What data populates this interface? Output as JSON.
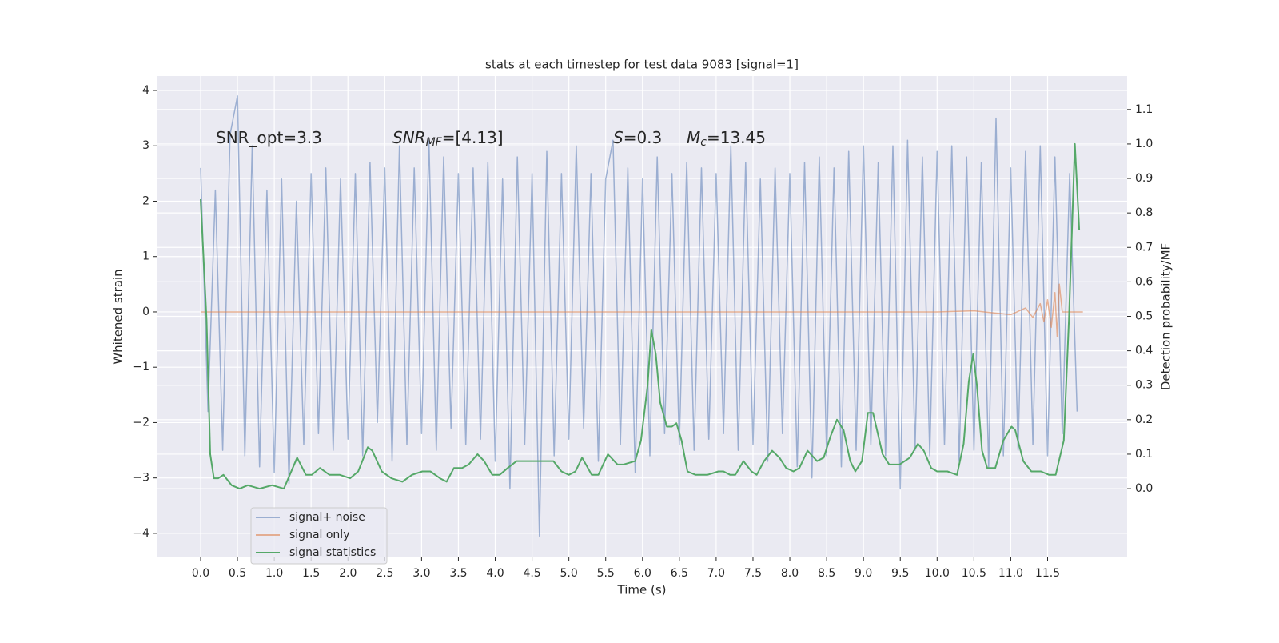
{
  "chart_data": {
    "type": "line",
    "title": "stats at each timestep for test data 9083 [signal=1]",
    "xlabel": "Time (s)",
    "ylabel": "Whitened strain",
    "y2label": "Detection probability/MF",
    "grid": true,
    "background": "#eaeaf2",
    "xlim": [
      -0.586,
      12.58
    ],
    "ylim": [
      -4.42,
      4.26
    ],
    "y2lim": [
      -0.197,
      1.197
    ],
    "xticks": [
      {
        "value": 0,
        "label": "0.0"
      },
      0.5,
      {
        "value": 1,
        "label": "1.0"
      },
      1.5,
      {
        "value": 2,
        "label": "2.0"
      },
      2.5,
      {
        "value": 3,
        "label": "3.0"
      },
      3.5,
      {
        "value": 4,
        "label": "4.0"
      },
      4.5,
      {
        "value": 5,
        "label": "5.0"
      },
      5.5,
      {
        "value": 6,
        "label": "6.0"
      },
      6.5,
      {
        "value": 7,
        "label": "7.0"
      },
      7.5,
      {
        "value": 8,
        "label": "8.0"
      },
      8.5,
      {
        "value": 9,
        "label": "9.0"
      },
      9.5,
      {
        "value": 10,
        "label": "10.0"
      },
      10.5,
      {
        "value": 11,
        "label": "11.0"
      },
      11.5
    ],
    "yticks": [
      {
        "value": -4,
        "label": "−4"
      },
      {
        "value": -3,
        "label": "−3"
      },
      {
        "value": -2,
        "label": "−2"
      },
      {
        "value": -1,
        "label": "−1"
      },
      0,
      1,
      2,
      3,
      4
    ],
    "y2ticks": [
      {
        "value": 0,
        "label": "0.0"
      },
      0.1,
      0.2,
      0.3,
      0.4,
      0.5,
      0.6,
      0.7,
      0.8,
      0.9,
      {
        "value": 1,
        "label": "1.0"
      },
      1.1
    ],
    "annotations": [
      [
        {
          "text": "SNR_opt=3.3"
        }
      ],
      [
        {
          "text": "SNR",
          "italic": true
        },
        {
          "text": "MF",
          "italic": true,
          "sub": true
        },
        {
          "text": "=[4.13]"
        }
      ],
      [
        {
          "text": "S",
          "italic": true
        },
        {
          "text": "=0.3"
        }
      ],
      [
        {
          "text": "M",
          "italic": true
        },
        {
          "text": "c",
          "italic": true,
          "sub": true
        },
        {
          "text": "=13.45"
        }
      ]
    ],
    "series": [
      {
        "name": "signal+ noise",
        "color": "#4c72b0",
        "opacity": 0.5,
        "axis": "y",
        "x": [
          0,
          0.1,
          0.2,
          0.3,
          0.4,
          0.5,
          0.6,
          0.7,
          0.8,
          0.9,
          1,
          1.1,
          1.2,
          1.3,
          1.4,
          1.5,
          1.6,
          1.7,
          1.8,
          1.9,
          2,
          2.1,
          2.2,
          2.3,
          2.4,
          2.5,
          2.6,
          2.7,
          2.8,
          2.9,
          3,
          3.1,
          3.2,
          3.3,
          3.4,
          3.5,
          3.6,
          3.7,
          3.8,
          3.9,
          4,
          4.1,
          4.2,
          4.3,
          4.4,
          4.5,
          4.6,
          4.7,
          4.8,
          4.9,
          5,
          5.1,
          5.2,
          5.3,
          5.4,
          5.5,
          5.6,
          5.7,
          5.8,
          5.9,
          6,
          6.1,
          6.2,
          6.3,
          6.4,
          6.5,
          6.6,
          6.7,
          6.8,
          6.9,
          7,
          7.1,
          7.2,
          7.3,
          7.4,
          7.5,
          7.6,
          7.7,
          7.8,
          7.9,
          8,
          8.1,
          8.2,
          8.3,
          8.4,
          8.5,
          8.6,
          8.7,
          8.8,
          8.9,
          9,
          9.1,
          9.2,
          9.3,
          9.4,
          9.5,
          9.6,
          9.7,
          9.8,
          9.9,
          10,
          10.1,
          10.2,
          10.3,
          10.4,
          10.5,
          10.6,
          10.7,
          10.8,
          10.9,
          11,
          11.1,
          11.2,
          11.3,
          11.4,
          11.5,
          11.6,
          11.7,
          11.8,
          11.9
        ],
        "values": [
          2.6,
          -1.8,
          2.2,
          -2.5,
          3.2,
          3.9,
          -2.6,
          3.0,
          -2.8,
          2.2,
          -2.9,
          2.4,
          -3.1,
          2.0,
          -2.4,
          2.5,
          -2.2,
          2.6,
          -2.5,
          2.4,
          -2.3,
          2.5,
          -2.6,
          2.7,
          -2.0,
          2.6,
          -2.7,
          3.0,
          -2.4,
          2.6,
          -2.2,
          3.1,
          -2.5,
          2.8,
          -2.1,
          2.5,
          -2.4,
          2.6,
          -2.3,
          2.7,
          -2.7,
          2.4,
          -3.2,
          2.8,
          -2.4,
          2.5,
          -4.05,
          2.9,
          -2.6,
          2.5,
          -2.3,
          3.0,
          -2.1,
          2.5,
          -2.7,
          2.4,
          3.1,
          -2.4,
          2.6,
          -2.9,
          2.4,
          -2.6,
          2.8,
          -2.2,
          2.5,
          -2.4,
          2.7,
          -2.5,
          2.6,
          -2.3,
          2.5,
          -2.2,
          3.0,
          -2.5,
          2.7,
          -2.4,
          2.4,
          -2.7,
          2.6,
          -2.2,
          2.5,
          -2.8,
          2.7,
          -3.0,
          2.8,
          -2.6,
          2.6,
          -2.8,
          2.9,
          -2.5,
          3.0,
          -2.4,
          2.7,
          -2.6,
          3.0,
          -3.2,
          3.1,
          -2.5,
          2.8,
          -2.6,
          2.9,
          -2.4,
          3.0,
          -2.7,
          2.8,
          -2.5,
          2.7,
          -2.8,
          3.5,
          -2.6,
          2.6,
          -2.5,
          2.9,
          -2.4,
          3.0,
          -2.6,
          2.8,
          -2.2,
          2.5,
          -1.8
        ]
      },
      {
        "name": "signal only",
        "color": "#dd8452",
        "opacity": 0.6,
        "axis": "y",
        "x": [
          0,
          10,
          10.5,
          11,
          11.2,
          11.3,
          11.4,
          11.45,
          11.5,
          11.55,
          11.6,
          11.63,
          11.66,
          11.7,
          11.98
        ],
        "values": [
          0,
          0,
          0.02,
          -0.05,
          0.07,
          -0.1,
          0.15,
          -0.18,
          0.22,
          -0.28,
          0.35,
          -0.45,
          0.5,
          0,
          0
        ]
      },
      {
        "name": "signal statistics",
        "color": "#55a868",
        "opacity": 1,
        "axis": "y2",
        "x": [
          0,
          0.08,
          0.13,
          0.18,
          0.24,
          0.31,
          0.42,
          0.53,
          0.64,
          0.8,
          0.97,
          1.13,
          1.21,
          1.31,
          1.43,
          1.51,
          1.62,
          1.75,
          1.89,
          2.03,
          2.14,
          2.27,
          2.33,
          2.46,
          2.59,
          2.74,
          2.87,
          3.01,
          3.12,
          3.25,
          3.34,
          3.44,
          3.55,
          3.64,
          3.76,
          3.85,
          3.96,
          4.06,
          4.17,
          4.29,
          4.5,
          4.66,
          4.79,
          4.9,
          5.0,
          5.09,
          5.18,
          5.31,
          5.4,
          5.53,
          5.66,
          5.74,
          5.9,
          5.98,
          6.07,
          6.12,
          6.18,
          6.24,
          6.33,
          6.4,
          6.46,
          6.53,
          6.61,
          6.72,
          6.88,
          7.03,
          7.1,
          7.19,
          7.26,
          7.37,
          7.48,
          7.55,
          7.65,
          7.76,
          7.86,
          7.95,
          8.05,
          8.13,
          8.24,
          8.37,
          8.46,
          8.55,
          8.64,
          8.73,
          8.82,
          8.89,
          8.98,
          9.06,
          9.13,
          9.26,
          9.35,
          9.49,
          9.63,
          9.74,
          9.82,
          9.92,
          10.0,
          10.14,
          10.27,
          10.36,
          10.43,
          10.49,
          10.54,
          10.61,
          10.68,
          10.79,
          10.9,
          11.01,
          11.06,
          11.17,
          11.28,
          11.41,
          11.52,
          11.61,
          11.72,
          11.79,
          11.87,
          11.93
        ],
        "values": [
          0.84,
          0.49,
          0.1,
          0.03,
          0.03,
          0.04,
          0.01,
          0.0,
          0.01,
          0.0,
          0.01,
          0.0,
          0.04,
          0.09,
          0.04,
          0.04,
          0.06,
          0.04,
          0.04,
          0.03,
          0.05,
          0.12,
          0.11,
          0.05,
          0.03,
          0.02,
          0.04,
          0.05,
          0.05,
          0.03,
          0.02,
          0.06,
          0.06,
          0.07,
          0.1,
          0.08,
          0.04,
          0.04,
          0.06,
          0.08,
          0.08,
          0.08,
          0.08,
          0.05,
          0.04,
          0.05,
          0.09,
          0.04,
          0.04,
          0.1,
          0.07,
          0.07,
          0.08,
          0.14,
          0.3,
          0.46,
          0.39,
          0.25,
          0.18,
          0.18,
          0.19,
          0.14,
          0.05,
          0.04,
          0.04,
          0.05,
          0.05,
          0.04,
          0.04,
          0.08,
          0.05,
          0.04,
          0.08,
          0.11,
          0.09,
          0.06,
          0.05,
          0.06,
          0.11,
          0.08,
          0.09,
          0.15,
          0.2,
          0.17,
          0.08,
          0.05,
          0.08,
          0.22,
          0.22,
          0.1,
          0.07,
          0.07,
          0.09,
          0.13,
          0.11,
          0.06,
          0.05,
          0.05,
          0.04,
          0.13,
          0.31,
          0.39,
          0.3,
          0.11,
          0.06,
          0.06,
          0.14,
          0.18,
          0.17,
          0.08,
          0.05,
          0.05,
          0.04,
          0.04,
          0.14,
          0.49,
          1.0,
          0.75
        ]
      }
    ]
  }
}
